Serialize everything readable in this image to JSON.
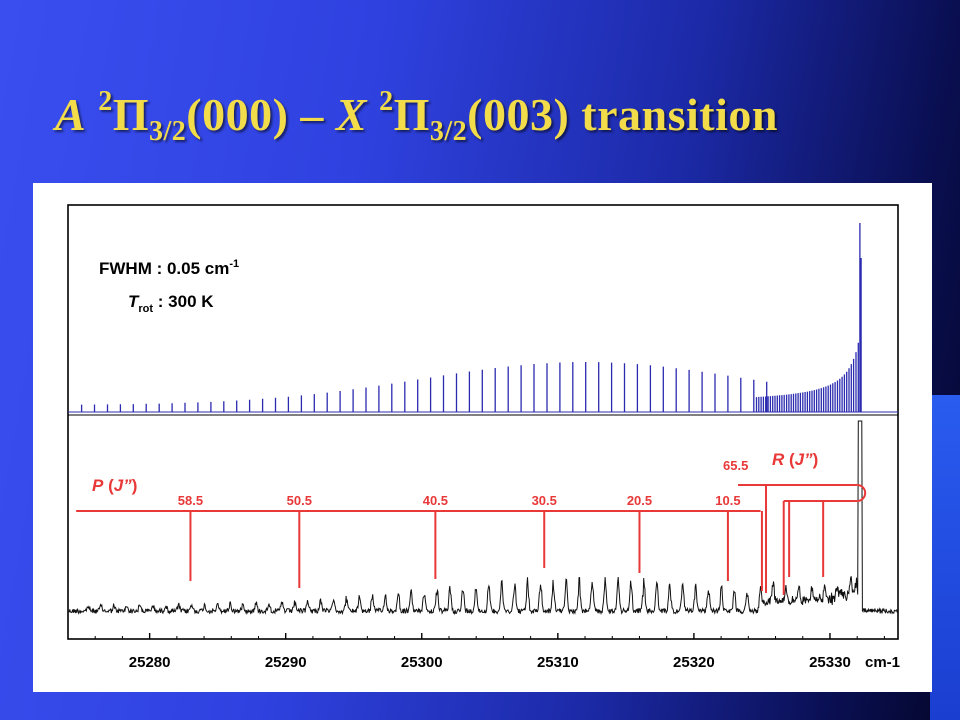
{
  "title": {
    "symbol_a": "A",
    "sup1": "2",
    "pi1": "Π",
    "sub1": "3/2",
    "state1": "(000) –",
    "symbol_x": "X",
    "sup2": "2",
    "pi2": "Π",
    "sub2": "3/2",
    "state2": "(003) transition"
  },
  "colors": {
    "title": "#f3dc4a",
    "sim_trace": "#2b2bb0",
    "exp_trace": "#111111",
    "assign": "#e83838"
  },
  "chart_data": {
    "type": "line",
    "x_unit": "cm-1",
    "xlim": [
      25274,
      25335
    ],
    "x_ticks": [
      25280,
      25290,
      25300,
      25310,
      25320,
      25330
    ],
    "grid": false,
    "annotations": {
      "fwhm_label": "FWHM : 0.05 cm",
      "fwhm_sup": "-1",
      "trot_T": "T",
      "trot_sub": "rot",
      "trot_value": " : 300 K"
    },
    "series": [
      {
        "role": "simulated",
        "band_origin": 25332.2,
        "p_branch_lines_start": 25275,
        "p_branch_spacing": 0.95,
        "envelope_peak_x": 25312,
        "band_head_x": 25332.2
      },
      {
        "role": "experimental",
        "band_head_x": 25332.2
      }
    ],
    "assignments": {
      "p_branch": {
        "label_prefix": "P",
        "label_j": "J”",
        "lines": [
          {
            "j": "58.5",
            "x": 25283.0
          },
          {
            "j": "50.5",
            "x": 25291.0
          },
          {
            "j": "40.5",
            "x": 25301.0
          },
          {
            "j": "30.5",
            "x": 25309.0
          },
          {
            "j": "20.5",
            "x": 25316.0
          },
          {
            "j": "10.5",
            "x": 25322.5
          }
        ],
        "extra_ticks_x": [
          25325.0
        ]
      },
      "r_branch": {
        "label_prefix": "R",
        "label_j": "J”",
        "j_label": "65.5",
        "head_x": 25325.3,
        "lines_x": [
          25327.0,
          25329.5
        ]
      }
    }
  }
}
